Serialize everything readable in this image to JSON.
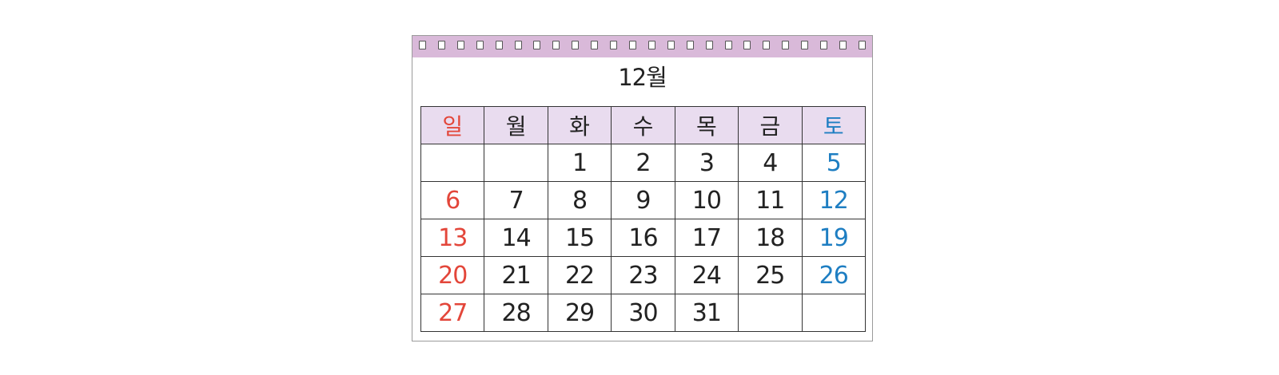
{
  "calendar": {
    "month_title": "12월",
    "binding_rings": 24,
    "colors": {
      "binding": "#d9b9d9",
      "header_bg": "#e9dcef",
      "sunday": "#e3463a",
      "saturday": "#1e7ec2",
      "text": "#222222"
    },
    "weekdays": [
      "일",
      "월",
      "화",
      "수",
      "목",
      "금",
      "토"
    ],
    "weeks": [
      [
        "",
        "",
        "1",
        "2",
        "3",
        "4",
        "5"
      ],
      [
        "6",
        "7",
        "8",
        "9",
        "10",
        "11",
        "12"
      ],
      [
        "13",
        "14",
        "15",
        "16",
        "17",
        "18",
        "19"
      ],
      [
        "20",
        "21",
        "22",
        "23",
        "24",
        "25",
        "26"
      ],
      [
        "27",
        "28",
        "29",
        "30",
        "31",
        "",
        ""
      ]
    ]
  }
}
